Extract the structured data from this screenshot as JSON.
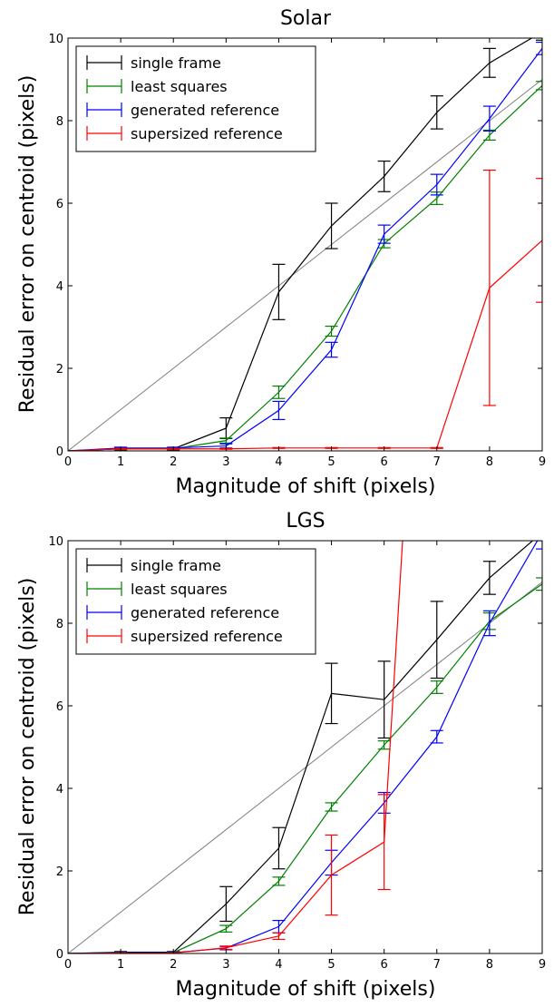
{
  "chart_data": [
    {
      "type": "line",
      "title": "Solar",
      "xlabel": "Magnitude of shift (pixels)",
      "ylabel": "Residual error on centroid (pixels)",
      "xlim": [
        0,
        9
      ],
      "ylim": [
        0,
        10
      ],
      "xticks": [
        0,
        1,
        2,
        3,
        4,
        5,
        6,
        7,
        8,
        9
      ],
      "yticks": [
        0,
        2,
        4,
        6,
        8,
        10
      ],
      "grid": false,
      "legend_position": "top-left",
      "reference_line": {
        "x": [
          0,
          9
        ],
        "y": [
          0,
          9
        ],
        "color": "#808080"
      },
      "series": [
        {
          "name": "single frame",
          "color": "#000000",
          "x": [
            0,
            1,
            2,
            3,
            4,
            5,
            6,
            7,
            8,
            9
          ],
          "y": [
            0.0,
            0.05,
            0.05,
            0.55,
            3.85,
            5.45,
            6.65,
            8.2,
            9.4,
            10.15
          ],
          "err": [
            0,
            0.03,
            0.03,
            0.25,
            0.67,
            0.55,
            0.37,
            0.4,
            0.35,
            0.2
          ]
        },
        {
          "name": "least squares",
          "color": "#008000",
          "x": [
            0,
            1,
            2,
            3,
            4,
            5,
            6,
            7,
            8,
            9
          ],
          "y": [
            0.0,
            0.05,
            0.05,
            0.25,
            1.42,
            2.9,
            5.02,
            6.12,
            7.65,
            8.85
          ],
          "err": [
            0,
            0.02,
            0.02,
            0.06,
            0.15,
            0.12,
            0.1,
            0.15,
            0.12,
            0.1
          ]
        },
        {
          "name": "generated reference",
          "color": "#0000ff",
          "x": [
            0,
            1,
            2,
            3,
            4,
            5,
            6,
            7,
            8,
            9
          ],
          "y": [
            0.0,
            0.07,
            0.07,
            0.12,
            0.98,
            2.45,
            5.25,
            6.45,
            8.05,
            9.75
          ],
          "err": [
            0,
            0.02,
            0.02,
            0.05,
            0.22,
            0.18,
            0.22,
            0.25,
            0.3,
            0.15
          ]
        },
        {
          "name": "supersized reference",
          "color": "#ff0000",
          "x": [
            0,
            1,
            2,
            3,
            4,
            5,
            6,
            7,
            8,
            9
          ],
          "y": [
            0.0,
            0.05,
            0.05,
            0.05,
            0.07,
            0.07,
            0.07,
            0.07,
            3.95,
            5.1
          ],
          "err": [
            0,
            0.01,
            0.01,
            0.01,
            0.01,
            0.01,
            0.01,
            0.01,
            2.85,
            1.5
          ]
        }
      ]
    },
    {
      "type": "line",
      "title": "LGS",
      "xlabel": "Magnitude of shift (pixels)",
      "ylabel": "Residual error on centroid (pixels)",
      "xlim": [
        0,
        9
      ],
      "ylim": [
        0,
        10
      ],
      "xticks": [
        0,
        1,
        2,
        3,
        4,
        5,
        6,
        7,
        8,
        9
      ],
      "yticks": [
        0,
        2,
        4,
        6,
        8,
        10
      ],
      "grid": false,
      "legend_position": "top-left",
      "reference_line": {
        "x": [
          0,
          9
        ],
        "y": [
          0,
          9
        ],
        "color": "#808080"
      },
      "series": [
        {
          "name": "single frame",
          "color": "#000000",
          "x": [
            0,
            1,
            2,
            3,
            4,
            5,
            6,
            7,
            8,
            9
          ],
          "y": [
            0.0,
            0.03,
            0.03,
            1.2,
            2.55,
            6.3,
            6.15,
            7.6,
            9.1,
            10.2
          ],
          "err": [
            0,
            0.02,
            0.02,
            0.42,
            0.5,
            0.73,
            0.93,
            0.93,
            0.4,
            0.2
          ]
        },
        {
          "name": "least squares",
          "color": "#008000",
          "x": [
            0,
            1,
            2,
            3,
            4,
            5,
            6,
            7,
            8,
            9
          ],
          "y": [
            0.0,
            0.02,
            0.02,
            0.6,
            1.75,
            3.55,
            5.05,
            6.45,
            8.05,
            8.95
          ],
          "err": [
            0,
            0.02,
            0.02,
            0.08,
            0.1,
            0.1,
            0.1,
            0.15,
            0.2,
            0.15
          ]
        },
        {
          "name": "generated reference",
          "color": "#0000ff",
          "x": [
            0,
            1,
            2,
            3,
            4,
            5,
            6,
            7,
            8,
            9
          ],
          "y": [
            0.0,
            0.02,
            0.02,
            0.13,
            0.65,
            2.2,
            3.65,
            5.25,
            8.0,
            10.2
          ],
          "err": [
            0,
            0.01,
            0.01,
            0.04,
            0.15,
            0.3,
            0.25,
            0.15,
            0.3,
            0.4
          ]
        },
        {
          "name": "supersized reference",
          "color": "#ff0000",
          "x": [
            0,
            1,
            2,
            3,
            4,
            5,
            6,
            6.35
          ],
          "y": [
            0.0,
            0.01,
            0.01,
            0.14,
            0.42,
            1.9,
            2.7,
            10.0
          ],
          "err": [
            0,
            0.01,
            0.01,
            0.04,
            0.08,
            0.97,
            1.15,
            0
          ]
        }
      ]
    }
  ]
}
